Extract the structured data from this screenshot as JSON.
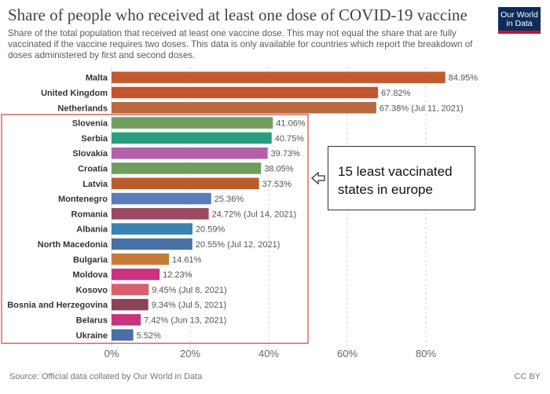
{
  "header": {
    "title": "Share of people who received at least one dose of COVID-19 vaccine",
    "subtitle": "Share of the total population that received at least one vaccine dose. This may not equal the share that are fully vaccinated if the vaccine requires two doses. This data is only available for countries which report the breakdown of doses administered by first and second doses.",
    "logo_line1": "Our World",
    "logo_line2": "in Data"
  },
  "footer": {
    "source": "Source: Official data collated by Our World in Data",
    "license": "CC BY"
  },
  "annotation": {
    "line1": "15 least vaccinated",
    "line2": "states in europe",
    "box_color": "#e05a4f",
    "highlighted_countries": [
      "Slovenia",
      "Serbia",
      "Slovakia",
      "Croatia",
      "Latvia",
      "Montenegro",
      "Romania",
      "Albania",
      "North Macedonia",
      "Bulgaria",
      "Moldova",
      "Kosovo",
      "Bosnia and Herzegovina",
      "Belarus",
      "Ukraine"
    ]
  },
  "chart_data": {
    "type": "bar",
    "orientation": "horizontal",
    "title": "Share of people who received at least one dose of COVID-19 vaccine",
    "xlim": [
      0,
      90
    ],
    "x_ticks": [
      "0%",
      "20%",
      "40%",
      "60%",
      "80%"
    ],
    "x_tick_values": [
      0,
      20,
      40,
      60,
      80
    ],
    "grid": "vertical dashed",
    "categories": [
      "Malta",
      "United Kingdom",
      "Netherlands",
      "Slovenia",
      "Serbia",
      "Slovakia",
      "Croatia",
      "Latvia",
      "Montenegro",
      "Romania",
      "Albania",
      "North Macedonia",
      "Bulgaria",
      "Moldova",
      "Kosovo",
      "Bosnia and Herzegovina",
      "Belarus",
      "Ukraine"
    ],
    "values": [
      84.95,
      67.82,
      67.38,
      41.06,
      40.75,
      39.73,
      38.05,
      37.53,
      25.36,
      24.72,
      20.59,
      20.55,
      14.61,
      12.23,
      9.45,
      9.34,
      7.42,
      5.52
    ],
    "labels": [
      "84.95%",
      "67.82%",
      "67.38% (Jul 11, 2021)",
      "41.06%",
      "40.75%",
      "39.73%",
      "38.05%",
      "37.53%",
      "25.36%",
      "24.72% (Jul 14, 2021)",
      "20.59%",
      "20.55% (Jul 12, 2021)",
      "14.61%",
      "12.23%",
      "9.45% (Jul 8, 2021)",
      "9.34% (Jul 5, 2021)",
      "7.42% (Jun 13, 2021)",
      "5.52%"
    ],
    "colors": [
      "#c15a2e",
      "#c4542c",
      "#b86a3e",
      "#6f9e5c",
      "#2a9d7f",
      "#b461a8",
      "#6f9e5c",
      "#b85c2e",
      "#5a7cb8",
      "#9a4a5e",
      "#3a82b0",
      "#4a6fa5",
      "#c67a3a",
      "#c8327e",
      "#d8606e",
      "#8a4458",
      "#c8327e",
      "#4a6fa5"
    ]
  }
}
